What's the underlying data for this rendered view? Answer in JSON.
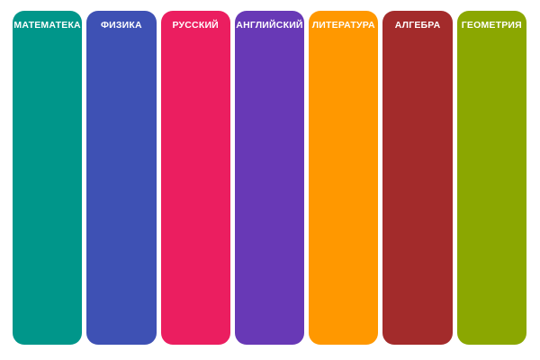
{
  "page": {
    "background_color": "#ffffff",
    "label_text_color": "#ffffff"
  },
  "columns": [
    {
      "label": "МАТЕМАТЕКА",
      "color": "#00968A"
    },
    {
      "label": "ФИЗИКА",
      "color": "#3E51B4"
    },
    {
      "label": "РУССКИЙ",
      "color": "#EB1E60"
    },
    {
      "label": "АНГЛИЙСКИЙ",
      "color": "#6839B6"
    },
    {
      "label": "ЛИТЕРАТУРА",
      "color": "#FF9800"
    },
    {
      "label": "АЛГЕБРА",
      "color": "#A32B2B"
    },
    {
      "label": "ГЕОМЕТРИЯ",
      "color": "#8BA701"
    }
  ]
}
